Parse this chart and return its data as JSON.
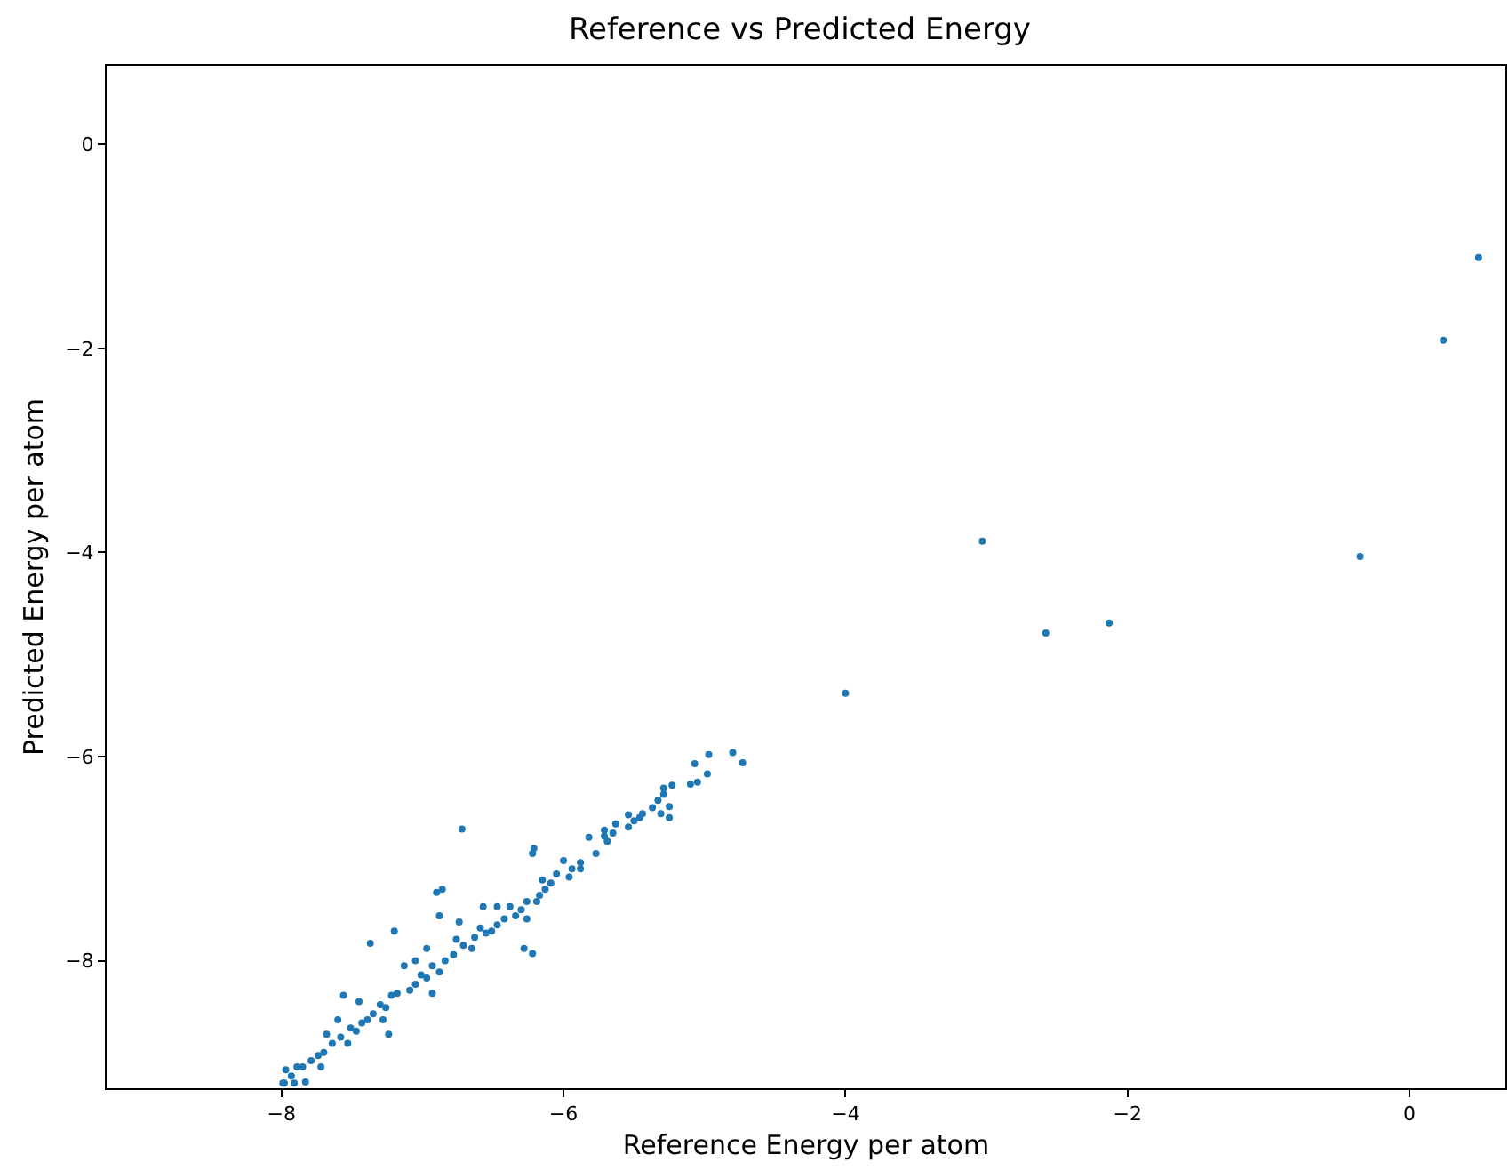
{
  "chart_data": {
    "type": "scatter",
    "title": "Reference vs Predicted Energy",
    "xlabel": "Reference Energy per atom",
    "ylabel": "Predicted Energy per atom",
    "color": "#1f77b4",
    "marker": "circle",
    "grid": false,
    "xlim": [
      -9.24,
      0.68
    ],
    "ylim": [
      -9.25,
      0.77
    ],
    "xticks": [
      {
        "value": -8,
        "label": "−8"
      },
      {
        "value": -6,
        "label": "−6"
      },
      {
        "value": -4,
        "label": "−4"
      },
      {
        "value": -2,
        "label": "−2"
      },
      0
    ],
    "yticks": [
      {
        "value": -8,
        "label": "−8"
      },
      {
        "value": -6,
        "label": "−6"
      },
      {
        "value": -4,
        "label": "−4"
      },
      {
        "value": -2,
        "label": "−2"
      },
      0
    ],
    "x": [
      0.49,
      0.24,
      -0.35,
      -3.03,
      -2.13,
      -2.58,
      -4.0,
      -4.8,
      -4.73,
      -4.97,
      -5.07,
      -4.98,
      -5.1,
      -5.05,
      -5.23,
      -5.29,
      -5.33,
      -5.25,
      -5.31,
      -5.37,
      -5.44,
      -5.46,
      -5.5,
      -5.54,
      -5.63,
      -5.65,
      -5.71,
      -5.69,
      -5.77,
      -5.82,
      -5.88,
      -5.94,
      -6.0,
      -6.05,
      -6.09,
      -6.13,
      -6.15,
      -6.17,
      -6.21,
      -6.22,
      -6.19,
      -6.26,
      -6.3,
      -6.34,
      -6.38,
      -6.42,
      -6.47,
      -6.51,
      -6.55,
      -6.59,
      -6.63,
      -6.65,
      -6.72,
      -6.71,
      -6.76,
      -6.78,
      -6.84,
      -6.88,
      -6.93,
      -6.97,
      -7.01,
      -7.05,
      -7.09,
      -7.13,
      -7.18,
      -7.22,
      -7.26,
      -7.3,
      -7.35,
      -7.39,
      -7.43,
      -7.45,
      -7.47,
      -7.51,
      -7.56,
      -7.58,
      -7.6,
      -7.64,
      -7.68,
      -7.7,
      -7.74,
      -7.79,
      -7.85,
      -7.89,
      -7.93,
      -7.97,
      -7.98,
      -7.99,
      -7.91,
      -7.83,
      -7.72,
      -7.53,
      -7.24,
      -7.2,
      -7.37,
      -6.9,
      -6.86,
      -6.28,
      -6.22,
      -6.88,
      -6.93,
      -6.57,
      -7.28,
      -7.05,
      -6.97,
      -6.74,
      -6.47,
      -6.26,
      -5.96,
      -5.88,
      -5.71,
      -5.54,
      -5.29,
      -5.25
    ],
    "values": [
      -1.11,
      -1.92,
      -4.04,
      -3.89,
      -4.69,
      -4.79,
      -5.38,
      -5.96,
      -6.06,
      -5.98,
      -6.07,
      -6.17,
      -6.27,
      -6.25,
      -6.28,
      -6.37,
      -6.43,
      -6.49,
      -6.56,
      -6.5,
      -6.56,
      -6.6,
      -6.63,
      -6.69,
      -6.66,
      -6.75,
      -6.78,
      -6.83,
      -6.95,
      -6.79,
      -7.04,
      -7.1,
      -7.02,
      -7.15,
      -7.24,
      -7.3,
      -7.21,
      -7.36,
      -6.9,
      -6.95,
      -7.42,
      -7.42,
      -7.5,
      -7.56,
      -7.47,
      -7.59,
      -7.65,
      -7.71,
      -7.73,
      -7.68,
      -7.77,
      -7.88,
      -6.71,
      -7.85,
      -7.79,
      -7.94,
      -8.0,
      -8.11,
      -8.05,
      -8.17,
      -8.14,
      -8.23,
      -8.29,
      -8.05,
      -8.32,
      -8.34,
      -8.46,
      -8.43,
      -8.52,
      -8.58,
      -8.61,
      -8.4,
      -8.69,
      -8.66,
      -8.34,
      -8.75,
      -8.58,
      -8.81,
      -8.72,
      -8.9,
      -8.93,
      -8.98,
      -9.04,
      -9.04,
      -9.13,
      -9.07,
      -9.2,
      -9.2,
      -9.2,
      -9.19,
      -9.04,
      -8.81,
      -8.72,
      -7.71,
      -7.83,
      -7.33,
      -7.3,
      -7.88,
      -7.93,
      -7.56,
      -8.32,
      -7.47,
      -8.58,
      -8.0,
      -7.88,
      -7.62,
      -7.47,
      -7.59,
      -7.18,
      -7.1,
      -6.72,
      -6.57,
      -6.31,
      -6.6
    ]
  }
}
